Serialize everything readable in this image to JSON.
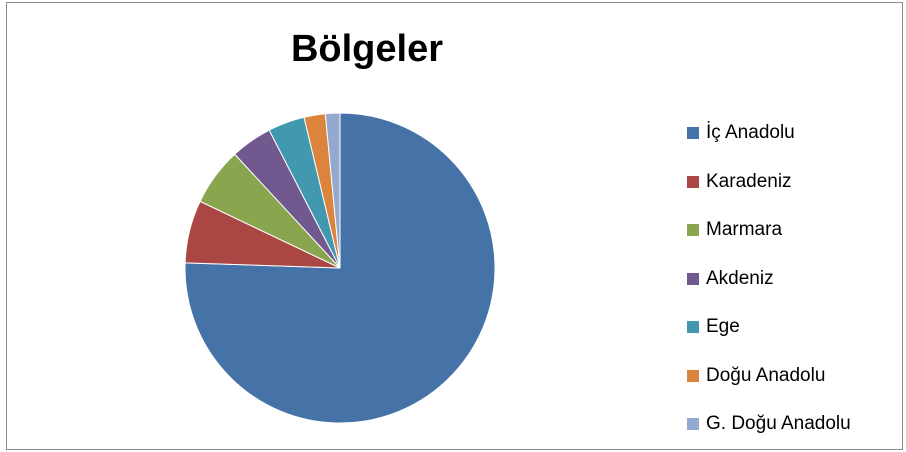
{
  "chart_data": {
    "type": "pie",
    "title": "Bölgeler",
    "legend_position": "right",
    "start_angle": "12 o'clock, clockwise",
    "slices": [
      {
        "label": "İç Anadolu",
        "value": 75.0,
        "color": "#4572A7"
      },
      {
        "label": "Karadeniz",
        "value": 6.5,
        "color": "#AA4643"
      },
      {
        "label": "Marmara",
        "value": 6.0,
        "color": "#89A54E"
      },
      {
        "label": "Akdeniz",
        "value": 4.3,
        "color": "#71588F"
      },
      {
        "label": "Ege",
        "value": 3.8,
        "color": "#4198AF"
      },
      {
        "label": "Doğu Anadolu",
        "value": 2.2,
        "color": "#DB843D"
      },
      {
        "label": "G. Doğu Anadolu",
        "value": 1.5,
        "color": "#93A9CF"
      }
    ]
  }
}
